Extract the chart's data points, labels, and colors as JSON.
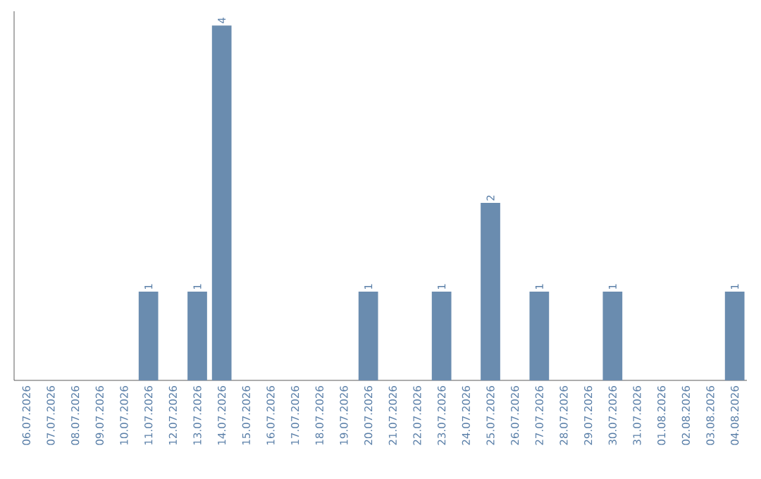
{
  "chart_data": {
    "type": "bar",
    "color": "#6a8caf",
    "categories": [
      "06.07.2026",
      "07.07.2026",
      "08.07.2026",
      "09.07.2026",
      "10.07.2026",
      "11.07.2026",
      "12.07.2026",
      "13.07.2026",
      "14.07.2026",
      "15.07.2026",
      "16.07.2026",
      "17.07.2026",
      "18.07.2026",
      "19.07.2026",
      "20.07.2026",
      "21.07.2026",
      "22.07.2026",
      "23.07.2026",
      "24.07.2026",
      "25.07.2026",
      "26.07.2026",
      "27.07.2026",
      "28.07.2026",
      "29.07.2026",
      "30.07.2026",
      "31.07.2026",
      "01.08.2026",
      "02.08.2026",
      "03.08.2026",
      "04.08.2026"
    ],
    "values": [
      0,
      0,
      0,
      0,
      0,
      1,
      0,
      1,
      4,
      0,
      0,
      0,
      0,
      0,
      1,
      0,
      0,
      1,
      0,
      2,
      0,
      1,
      0,
      0,
      1,
      0,
      0,
      0,
      0,
      1
    ],
    "value_labels": [
      null,
      null,
      null,
      null,
      null,
      "1",
      null,
      "1",
      "4",
      null,
      null,
      null,
      null,
      null,
      "1",
      null,
      null,
      "1",
      null,
      "2",
      null,
      "1",
      null,
      null,
      "1",
      null,
      null,
      null,
      null,
      "1"
    ],
    "tick_labels": "x"
  }
}
